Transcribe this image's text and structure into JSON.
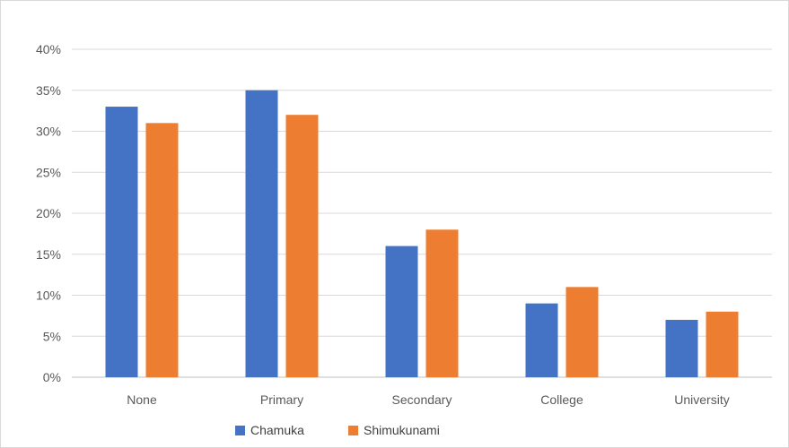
{
  "chart_data": {
    "type": "bar",
    "categories": [
      "None",
      "Primary",
      "Secondary",
      "College",
      "University"
    ],
    "series": [
      {
        "name": "Chamuka",
        "values": [
          33,
          35,
          16,
          9,
          7
        ],
        "color": "#4472c4"
      },
      {
        "name": "Shimukunami",
        "values": [
          31,
          32,
          18,
          11,
          8
        ],
        "color": "#ed7d31"
      }
    ],
    "ylim": [
      0,
      40
    ],
    "yticks": [
      "0%",
      "5%",
      "10%",
      "15%",
      "20%",
      "25%",
      "30%",
      "35%",
      "40%"
    ],
    "unit": "%",
    "grid": true,
    "legend_position": "bottom"
  }
}
